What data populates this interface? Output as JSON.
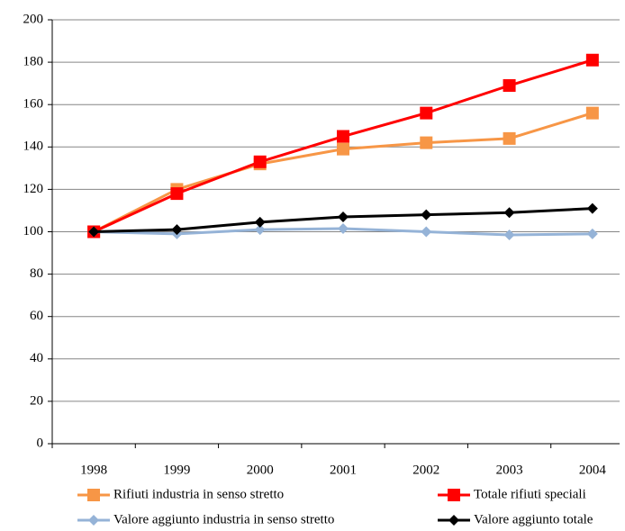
{
  "chart_data": {
    "type": "line",
    "categories": [
      "1998",
      "1999",
      "2000",
      "2001",
      "2002",
      "2003",
      "2004"
    ],
    "series": [
      {
        "name": "Rifiuti industria in senso stretto",
        "color": "#f79646",
        "marker": "square",
        "values": [
          100,
          120,
          132,
          139,
          142,
          144,
          156
        ]
      },
      {
        "name": "Totale rifiuti speciali",
        "color": "#ff0000",
        "marker": "square",
        "values": [
          100,
          118,
          133,
          145,
          156,
          169,
          181
        ]
      },
      {
        "name": "Valore aggiunto industria in senso stretto",
        "color": "#95b3d7",
        "marker": "diamond",
        "values": [
          100,
          99,
          101,
          101.5,
          100,
          98.5,
          99
        ]
      },
      {
        "name": "Valore aggiunto totale",
        "color": "#000000",
        "marker": "diamond",
        "values": [
          100,
          101,
          104.5,
          107,
          108,
          109,
          111
        ]
      }
    ],
    "ylim": [
      0,
      200
    ],
    "yticks": [
      0,
      20,
      40,
      60,
      80,
      100,
      120,
      140,
      160,
      180,
      200
    ],
    "grid": true,
    "legend": "bottom"
  }
}
